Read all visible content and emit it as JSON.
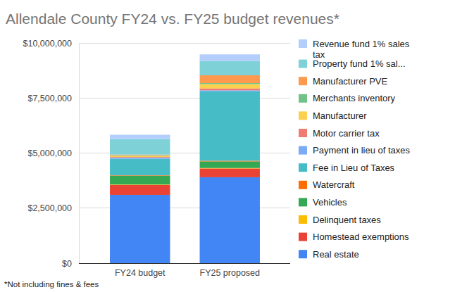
{
  "chart_data": {
    "type": "bar",
    "title": "Allendale County FY24 vs. FY25 budget revenues*",
    "annotations": [
      "*Not including fines & fees"
    ],
    "categories": [
      "FY24 budget",
      "FY25 proposed"
    ],
    "stacked": true,
    "legend": "right",
    "grid": true,
    "ylim": [
      0,
      10000000
    ],
    "yticks": [
      {
        "value": 0,
        "label": "$0"
      },
      {
        "value": 2500000,
        "label": "$2,500,000"
      },
      {
        "value": 5000000,
        "label": "$5,000,000"
      },
      {
        "value": 7500000,
        "label": "$7,500,000"
      },
      {
        "value": 10000000,
        "label": "$10,000,000"
      }
    ],
    "series": [
      {
        "name": "Revenue fund 1% sales tax",
        "color": "#b3cefb",
        "values": [
          200000,
          300000
        ]
      },
      {
        "name": "Property fund 1% sal...",
        "color": "#7ed1d7",
        "values": [
          700000,
          650000
        ]
      },
      {
        "name": "Manufacturer PVE",
        "color": "#ff994d",
        "values": [
          30000,
          350000
        ]
      },
      {
        "name": "Merchants inventory",
        "color": "#71c287",
        "values": [
          30000,
          50000
        ]
      },
      {
        "name": "Manufacturer",
        "color": "#fcd04f",
        "values": [
          50000,
          200000
        ]
      },
      {
        "name": "Motor carrier tax",
        "color": "#f07b72",
        "values": [
          30000,
          80000
        ]
      },
      {
        "name": "Payment in lieu of taxes",
        "color": "#7baaf7",
        "values": [
          50000,
          50000
        ]
      },
      {
        "name": "Fee in Lieu of Taxes",
        "color": "#46bdc6",
        "values": [
          750000,
          3150000
        ]
      },
      {
        "name": "Watercraft",
        "color": "#ff6d01",
        "values": [
          20000,
          30000
        ]
      },
      {
        "name": "Vehicles",
        "color": "#34a853",
        "values": [
          400000,
          300000
        ]
      },
      {
        "name": "Delinquent taxes",
        "color": "#fbbc04",
        "values": [
          20000,
          20000
        ]
      },
      {
        "name": "Homestead exemptions",
        "color": "#ea4335",
        "values": [
          450000,
          400000
        ]
      },
      {
        "name": "Real estate",
        "color": "#4285f4",
        "values": [
          3100000,
          3900000
        ]
      }
    ]
  }
}
